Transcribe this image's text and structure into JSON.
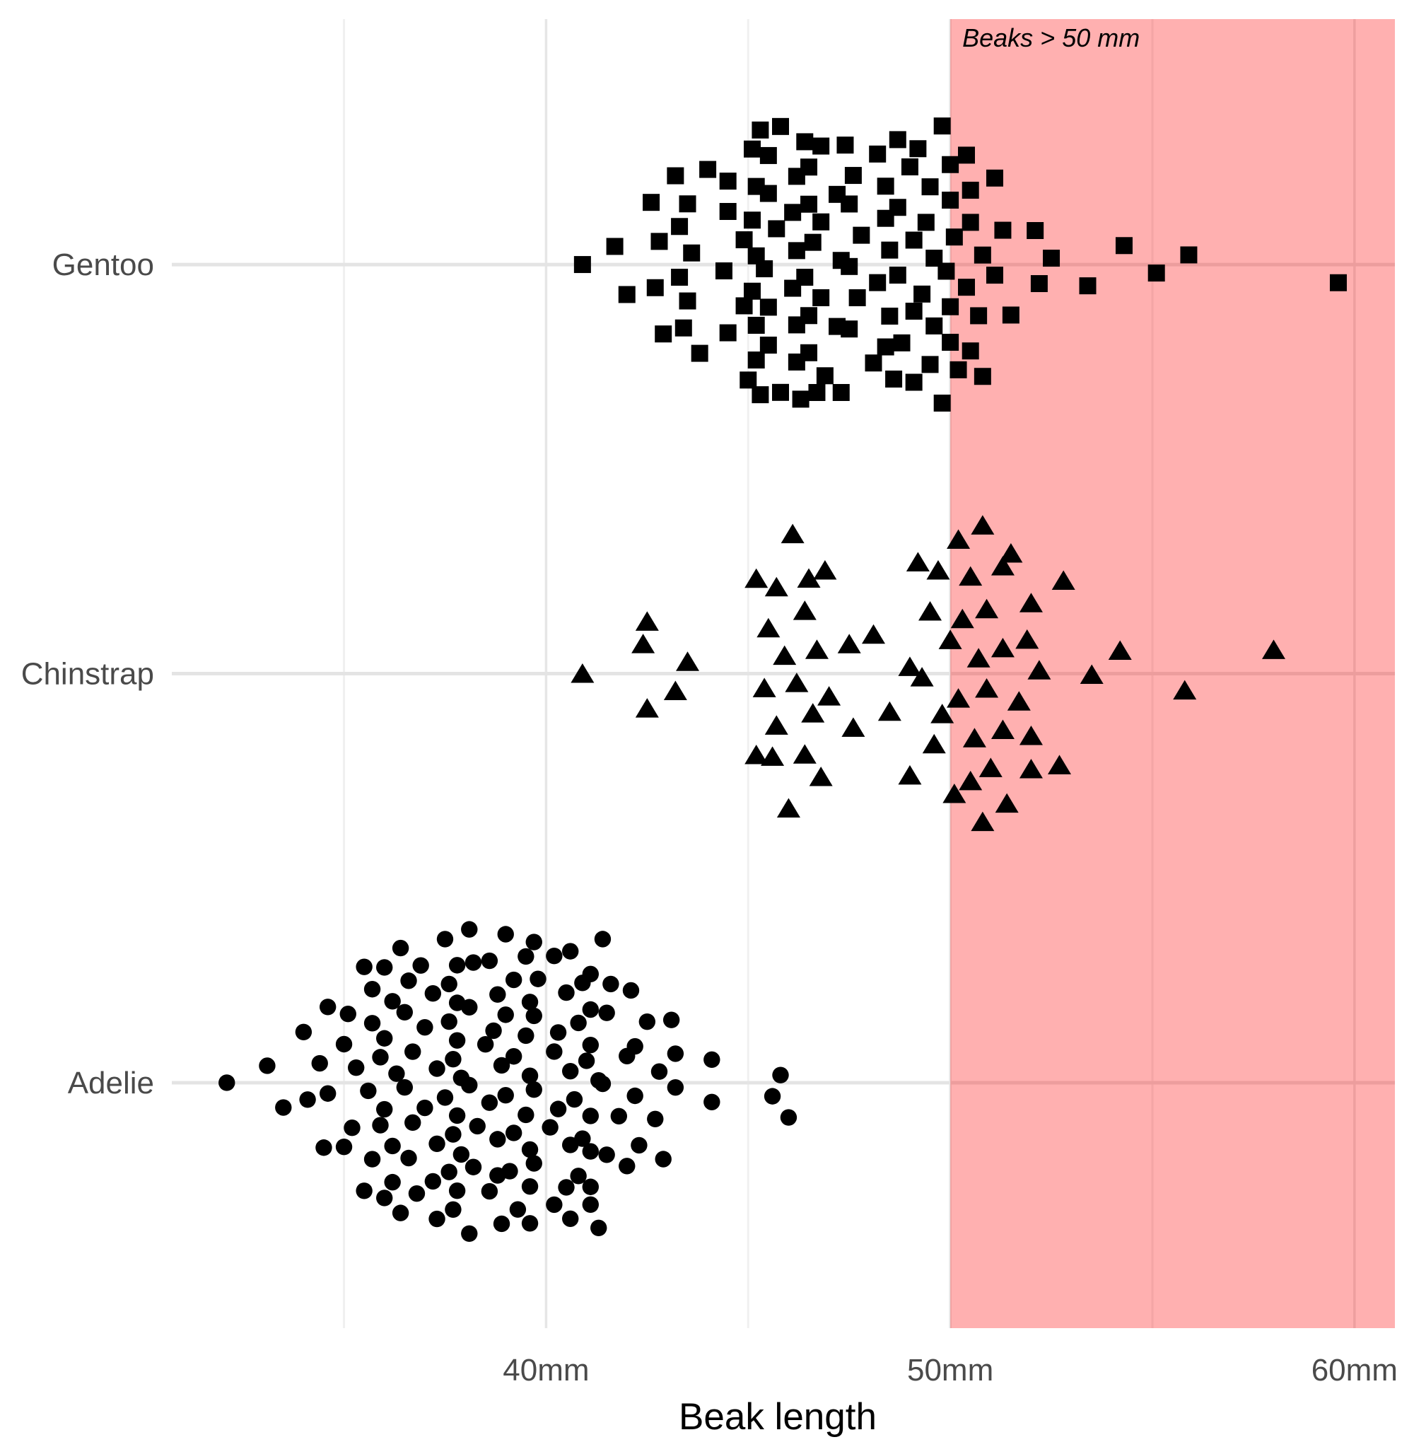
{
  "chart_data": {
    "type": "scatter",
    "variant": "beeswarm",
    "title": "",
    "xlabel": "Beak length",
    "ylabel": "",
    "xlim": [
      30.74,
      61.0
    ],
    "x_ticks": [
      {
        "value": 40,
        "label": "40mm"
      },
      {
        "value": 50,
        "label": "50mm"
      },
      {
        "value": 60,
        "label": "60mm"
      }
    ],
    "x_minor_ticks": [
      35,
      45,
      55
    ],
    "grid": "vertical major+minor, horizontal per-category",
    "legend": "none",
    "annotation": {
      "text": "Beaks > 50 mm",
      "at_mm": 50,
      "style": "italic",
      "position": "top-left-of-region"
    },
    "highlight_region": {
      "xmin_mm": 50,
      "xmax": "right-edge",
      "fill": "#FF0000",
      "opacity": 0.31
    },
    "colors": {
      "points": "#000000",
      "grid_major": "#e6e6e6",
      "grid_minor": "#f0f0f0",
      "axis_text": "#4a4a4a",
      "axis_title": "#000000",
      "background": "#ffffff"
    },
    "categories": [
      {
        "label": "Gentoo",
        "marker": "square",
        "row": 3
      },
      {
        "label": "Chinstrap",
        "marker": "triangle",
        "row": 2
      },
      {
        "label": "Adelie",
        "marker": "circle",
        "row": 1
      }
    ],
    "series": [
      {
        "name": "Gentoo",
        "marker": "square",
        "bill_length_mm": [
          46.1,
          50.0,
          48.7,
          50.0,
          47.6,
          46.5,
          45.4,
          46.7,
          43.3,
          46.8,
          40.9,
          49.0,
          45.5,
          48.4,
          45.8,
          49.3,
          42.0,
          49.2,
          46.2,
          48.7,
          50.2,
          45.1,
          46.5,
          46.3,
          42.9,
          46.1,
          44.5,
          47.8,
          48.2,
          50.0,
          47.3,
          42.8,
          45.1,
          59.6,
          49.1,
          48.4,
          42.6,
          44.4,
          44.0,
          48.7,
          42.7,
          49.6,
          45.3,
          49.6,
          50.5,
          43.6,
          45.5,
          50.5,
          44.9,
          45.2,
          46.6,
          48.5,
          45.1,
          50.1,
          46.5,
          45.0,
          43.8,
          45.5,
          43.2,
          50.4,
          45.3,
          46.2,
          45.7,
          54.3,
          45.8,
          49.8,
          46.2,
          49.5,
          43.5,
          50.7,
          47.7,
          46.4,
          48.2,
          46.5,
          46.4,
          48.6,
          47.5,
          51.1,
          45.2,
          45.2,
          49.1,
          52.5,
          47.4,
          50.0,
          44.9,
          50.8,
          43.4,
          51.3,
          47.5,
          52.1,
          47.5,
          52.2,
          45.5,
          49.5,
          44.5,
          50.8,
          49.4,
          46.9,
          48.4,
          51.1,
          48.5,
          55.9,
          47.2,
          49.1,
          47.3,
          46.8,
          41.7,
          53.4,
          43.3,
          48.1,
          50.5,
          49.8,
          43.5,
          51.5,
          46.2,
          55.1,
          44.5,
          48.8,
          47.2,
          46.8,
          50.4,
          45.2,
          49.9
        ]
      },
      {
        "name": "Chinstrap",
        "marker": "triangle",
        "bill_length_mm": [
          46.5,
          50.0,
          51.3,
          45.4,
          52.7,
          45.2,
          46.1,
          51.3,
          46.0,
          51.3,
          46.6,
          51.7,
          47.0,
          52.0,
          45.9,
          50.5,
          50.3,
          58.0,
          46.4,
          49.2,
          42.4,
          48.5,
          43.2,
          50.6,
          46.7,
          52.0,
          50.5,
          49.5,
          46.4,
          52.8,
          40.9,
          54.2,
          42.5,
          51.0,
          49.7,
          47.5,
          47.6,
          52.0,
          46.9,
          53.5,
          49.0,
          46.2,
          50.9,
          45.5,
          50.9,
          50.8,
          50.1,
          49.0,
          51.5,
          49.8,
          48.1,
          51.4,
          45.7,
          50.7,
          42.5,
          52.2,
          45.2,
          49.3,
          50.2,
          45.6,
          51.9,
          46.8,
          45.7,
          55.8,
          43.5,
          49.6,
          50.8,
          50.2
        ]
      },
      {
        "name": "Adelie",
        "marker": "circle",
        "bill_length_mm": [
          39.1,
          39.5,
          40.3,
          36.7,
          39.3,
          38.9,
          39.2,
          34.1,
          42.0,
          37.8,
          37.8,
          41.1,
          38.6,
          34.6,
          36.6,
          38.7,
          42.5,
          34.4,
          46.0,
          37.8,
          37.7,
          35.9,
          38.2,
          38.8,
          35.3,
          40.6,
          40.5,
          37.9,
          40.5,
          39.5,
          37.2,
          39.5,
          40.9,
          36.4,
          39.2,
          38.8,
          42.2,
          37.6,
          39.8,
          36.5,
          40.8,
          36.0,
          44.1,
          37.0,
          39.6,
          41.1,
          37.5,
          36.0,
          42.3,
          39.6,
          40.1,
          35.0,
          42.0,
          34.5,
          41.4,
          39.0,
          40.6,
          36.5,
          37.6,
          35.7,
          41.3,
          37.6,
          41.1,
          36.4,
          41.6,
          35.5,
          41.1,
          35.9,
          41.8,
          33.5,
          39.7,
          39.6,
          45.8,
          35.5,
          42.8,
          40.9,
          37.2,
          36.2,
          42.1,
          34.6,
          42.9,
          36.7,
          35.1,
          37.3,
          41.3,
          36.3,
          36.9,
          38.3,
          38.9,
          35.7,
          41.1,
          34.0,
          39.6,
          36.2,
          40.8,
          38.1,
          40.3,
          33.1,
          43.2,
          35.0,
          41.0,
          37.7,
          37.8,
          37.9,
          39.7,
          38.6,
          38.2,
          38.1,
          43.2,
          38.1,
          45.6,
          39.7,
          42.2,
          39.6,
          42.7,
          38.6,
          37.3,
          35.7,
          41.1,
          36.2,
          37.7,
          40.2,
          41.4,
          35.2,
          40.6,
          38.8,
          41.5,
          39.0,
          44.1,
          38.5,
          43.1,
          36.8,
          37.5,
          38.1,
          41.1,
          35.6,
          40.2,
          37.0,
          39.7,
          40.2,
          40.6,
          32.1,
          40.7,
          37.3,
          39.0,
          39.2,
          36.6,
          36.0,
          37.8,
          36.0,
          41.5
        ]
      }
    ]
  }
}
